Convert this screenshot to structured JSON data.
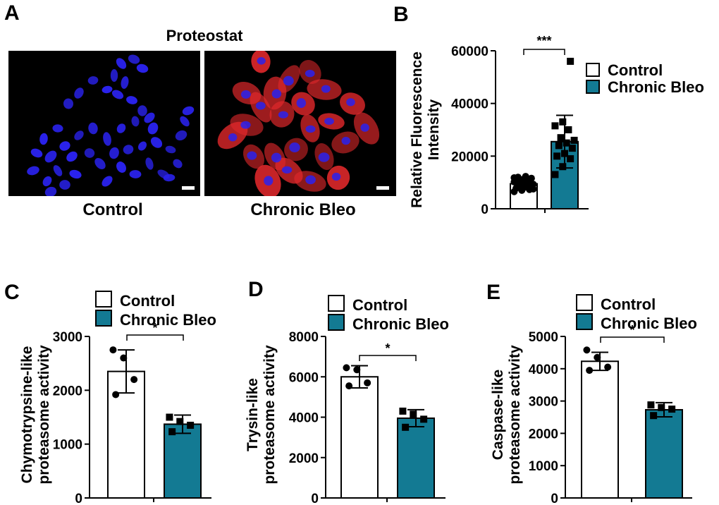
{
  "panel_labels": [
    "A",
    "B",
    "C",
    "D",
    "E"
  ],
  "panel_a": {
    "title": "Proteostat",
    "captions": [
      "Control",
      "Chronic Bleo"
    ]
  },
  "colors": {
    "control_fill": "#ffffff",
    "bleo_fill": "#137a93",
    "ink": "#000000",
    "nucleus": "#2a22ee",
    "proteostat": "#e0282b"
  },
  "chart_data": [
    {
      "panel": "B",
      "type": "bar",
      "categories": [
        "Control",
        "Chronic Bleo"
      ],
      "values": [
        9500,
        25500
      ],
      "error": [
        1800,
        10000
      ],
      "points": [
        [
          6500,
          7000,
          7300,
          7800,
          8000,
          8300,
          8600,
          9000,
          9300,
          9600,
          9900,
          10200,
          10500,
          10800,
          11000,
          11300,
          11600,
          12000,
          12300,
          7500,
          8800,
          10000,
          11800,
          9500
        ],
        [
          13000,
          16000,
          19000,
          20000,
          21000,
          23000,
          24000,
          25000,
          26000,
          27000,
          30000,
          31500,
          33000,
          56000
        ]
      ],
      "ylabel": [
        "Relative Fluorescence",
        "Intensity"
      ],
      "ylim": [
        0,
        60000
      ],
      "yticks": [
        0,
        20000,
        40000,
        60000
      ],
      "ytick_labels": [
        "0",
        "20000",
        "40000",
        "60000"
      ],
      "significance": "***",
      "legend": [
        "Control",
        "Chronic Bleo"
      ],
      "legend_position": "top-right"
    },
    {
      "panel": "C",
      "type": "bar",
      "categories": [
        "Control",
        "Chronic Bleo"
      ],
      "values": [
        2350,
        1370
      ],
      "error": [
        400,
        170
      ],
      "points": [
        [
          2750,
          2600,
          2200,
          1920
        ],
        [
          1500,
          1420,
          1350,
          1230
        ]
      ],
      "ylabel": [
        "Chymotrypsine-like",
        "proteasome activity"
      ],
      "ylim": [
        0,
        3000
      ],
      "yticks": [
        0,
        1000,
        2000,
        3000
      ],
      "ytick_labels": [
        "0",
        "1000",
        "2000",
        "3000"
      ],
      "significance": "*",
      "legend": [
        "Control",
        "Chronic Bleo"
      ],
      "legend_position": "top"
    },
    {
      "panel": "D",
      "type": "bar",
      "categories": [
        "Control",
        "Chronic Bleo"
      ],
      "values": [
        6000,
        3950
      ],
      "error": [
        550,
        420
      ],
      "points": [
        [
          6450,
          6350,
          5700,
          5550
        ],
        [
          4300,
          4150,
          3900,
          3500
        ]
      ],
      "ylabel": [
        "Trysin-like",
        "proteasome activity"
      ],
      "ylim": [
        0,
        8000
      ],
      "yticks": [
        0,
        2000,
        4000,
        6000,
        8000
      ],
      "ytick_labels": [
        "0",
        "2000",
        "4000",
        "6000",
        "8000"
      ],
      "significance": "*",
      "legend": [
        "Control",
        "Chronic Bleo"
      ],
      "legend_position": "top"
    },
    {
      "panel": "E",
      "type": "bar",
      "categories": [
        "Control",
        "Chronic Bleo"
      ],
      "values": [
        4230,
        2730
      ],
      "error": [
        280,
        220
      ],
      "points": [
        [
          4580,
          4350,
          4050,
          3950
        ],
        [
          2880,
          2800,
          2750,
          2550
        ]
      ],
      "ylabel": [
        "Caspase-like",
        "proteasome activity"
      ],
      "ylim": [
        0,
        5000
      ],
      "yticks": [
        0,
        1000,
        2000,
        3000,
        4000,
        5000
      ],
      "ytick_labels": [
        "0",
        "1000",
        "2000",
        "3000",
        "4000",
        "5000"
      ],
      "significance": "*",
      "legend": [
        "Control",
        "Chronic Bleo"
      ],
      "legend_position": "top"
    }
  ]
}
